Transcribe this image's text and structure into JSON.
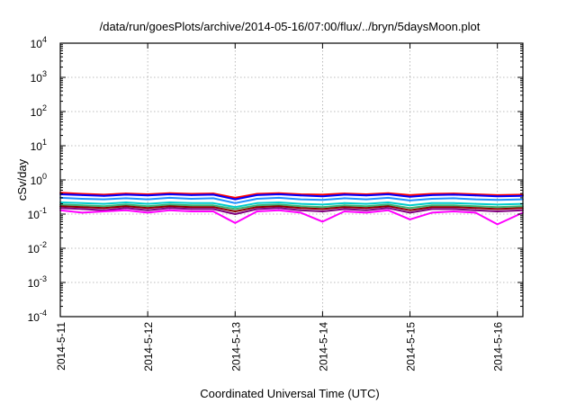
{
  "chart_data": {
    "type": "line",
    "title": "/data/run/goesPlots/archive/2014-05-16/07:00/flux/../bryn/5daysMoon.plot",
    "xlabel": "Coordinated Universal Time (UTC)",
    "ylabel": "cSv/day",
    "yscale": "log",
    "ylim": [
      "1e-4",
      "1e4"
    ],
    "xlim": [
      "2014-05-11T00:00",
      "2014-05-16T07:00"
    ],
    "grid": true,
    "x_ticks": [
      "2014-5-11",
      "2014-5-12",
      "2014-5-13",
      "2014-5-14",
      "2014-5-15",
      "2014-5-16"
    ],
    "y_ticks": [
      {
        "base": "10",
        "exp": "-4"
      },
      {
        "base": "10",
        "exp": "-3"
      },
      {
        "base": "10",
        "exp": "-2"
      },
      {
        "base": "10",
        "exp": "-1"
      },
      {
        "base": "10",
        "exp": "0"
      },
      {
        "base": "10",
        "exp": "1"
      },
      {
        "base": "10",
        "exp": "2"
      },
      {
        "base": "10",
        "exp": "3"
      },
      {
        "base": "10",
        "exp": "4"
      }
    ],
    "x": [
      "2014-05-11T00:00",
      "2014-05-11T06:00",
      "2014-05-11T12:00",
      "2014-05-11T18:00",
      "2014-05-12T00:00",
      "2014-05-12T06:00",
      "2014-05-12T12:00",
      "2014-05-12T18:00",
      "2014-05-13T00:00",
      "2014-05-13T06:00",
      "2014-05-13T12:00",
      "2014-05-13T18:00",
      "2014-05-14T00:00",
      "2014-05-14T06:00",
      "2014-05-14T12:00",
      "2014-05-14T18:00",
      "2014-05-15T00:00",
      "2014-05-15T06:00",
      "2014-05-15T12:00",
      "2014-05-15T18:00",
      "2014-05-16T00:00",
      "2014-05-16T07:00"
    ],
    "series": [
      {
        "color": "#ff0000",
        "values": [
          0.42,
          0.39,
          0.37,
          0.4,
          0.38,
          0.41,
          0.39,
          0.4,
          0.3,
          0.39,
          0.41,
          0.38,
          0.37,
          0.4,
          0.38,
          0.41,
          0.36,
          0.39,
          0.4,
          0.38,
          0.36,
          0.37
        ]
      },
      {
        "color": "#0000ff",
        "values": [
          0.38,
          0.36,
          0.34,
          0.37,
          0.35,
          0.38,
          0.36,
          0.37,
          0.27,
          0.36,
          0.38,
          0.35,
          0.33,
          0.37,
          0.35,
          0.38,
          0.32,
          0.36,
          0.37,
          0.35,
          0.33,
          0.34
        ]
      },
      {
        "color": "#1e90ff",
        "values": [
          0.3,
          0.28,
          0.27,
          0.29,
          0.27,
          0.3,
          0.28,
          0.29,
          0.21,
          0.28,
          0.3,
          0.27,
          0.26,
          0.29,
          0.27,
          0.3,
          0.25,
          0.28,
          0.29,
          0.27,
          0.26,
          0.27
        ]
      },
      {
        "color": "#00cccc",
        "values": [
          0.22,
          0.21,
          0.2,
          0.22,
          0.2,
          0.22,
          0.21,
          0.21,
          0.16,
          0.21,
          0.22,
          0.2,
          0.19,
          0.21,
          0.2,
          0.22,
          0.18,
          0.21,
          0.21,
          0.2,
          0.19,
          0.2
        ]
      },
      {
        "color": "#3cb371",
        "values": [
          0.19,
          0.18,
          0.17,
          0.19,
          0.17,
          0.19,
          0.18,
          0.18,
          0.14,
          0.18,
          0.19,
          0.17,
          0.16,
          0.18,
          0.17,
          0.19,
          0.15,
          0.18,
          0.18,
          0.17,
          0.16,
          0.17
        ]
      },
      {
        "color": "#8b0000",
        "values": [
          0.17,
          0.16,
          0.15,
          0.17,
          0.15,
          0.17,
          0.16,
          0.16,
          0.12,
          0.16,
          0.17,
          0.15,
          0.14,
          0.16,
          0.15,
          0.17,
          0.13,
          0.16,
          0.16,
          0.15,
          0.14,
          0.15
        ]
      },
      {
        "color": "#800080",
        "values": [
          0.15,
          0.14,
          0.13,
          0.15,
          0.13,
          0.15,
          0.14,
          0.14,
          0.1,
          0.14,
          0.15,
          0.13,
          0.12,
          0.14,
          0.13,
          0.15,
          0.11,
          0.14,
          0.14,
          0.13,
          0.12,
          0.13
        ]
      },
      {
        "color": "#ff00ff",
        "values": [
          0.13,
          0.11,
          0.12,
          0.13,
          0.11,
          0.13,
          0.12,
          0.12,
          0.055,
          0.12,
          0.13,
          0.11,
          0.06,
          0.12,
          0.11,
          0.13,
          0.07,
          0.11,
          0.12,
          0.11,
          0.05,
          0.11
        ]
      }
    ]
  }
}
